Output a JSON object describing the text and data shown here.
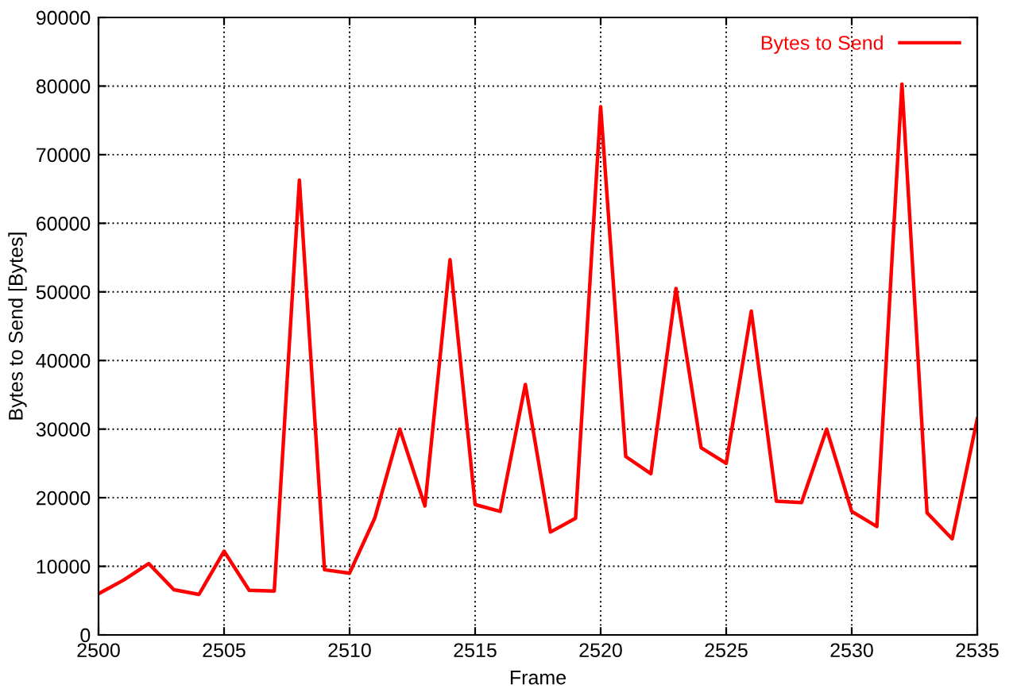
{
  "chart_data": {
    "type": "line",
    "xlabel": "Frame",
    "ylabel": "Bytes to Send [Bytes]",
    "x": [
      2500,
      2501,
      2502,
      2503,
      2504,
      2505,
      2506,
      2507,
      2508,
      2509,
      2510,
      2511,
      2512,
      2513,
      2514,
      2515,
      2516,
      2517,
      2518,
      2519,
      2520,
      2521,
      2522,
      2523,
      2524,
      2525,
      2526,
      2527,
      2528,
      2529,
      2530,
      2531,
      2532,
      2533,
      2534,
      2535
    ],
    "series": [
      {
        "name": "Bytes to Send",
        "color": "#ff0000",
        "values": [
          6000,
          8000,
          10400,
          6600,
          5900,
          12200,
          6500,
          6400,
          66300,
          9500,
          9000,
          17000,
          30000,
          18800,
          54700,
          19000,
          18000,
          36500,
          15000,
          17000,
          77000,
          26000,
          23500,
          50500,
          27300,
          25000,
          47200,
          19500,
          19300,
          30000,
          18000,
          15800,
          80300,
          17800,
          14000,
          31500
        ]
      }
    ],
    "xlim": [
      2500,
      2535
    ],
    "xticks": [
      2500,
      2505,
      2510,
      2515,
      2520,
      2525,
      2530,
      2535
    ],
    "ylim": [
      0,
      90000
    ],
    "yticks": [
      0,
      10000,
      20000,
      30000,
      40000,
      50000,
      60000,
      70000,
      80000,
      90000
    ],
    "grid": true,
    "legend": "top right",
    "line_style": "solid",
    "marker": "none"
  }
}
